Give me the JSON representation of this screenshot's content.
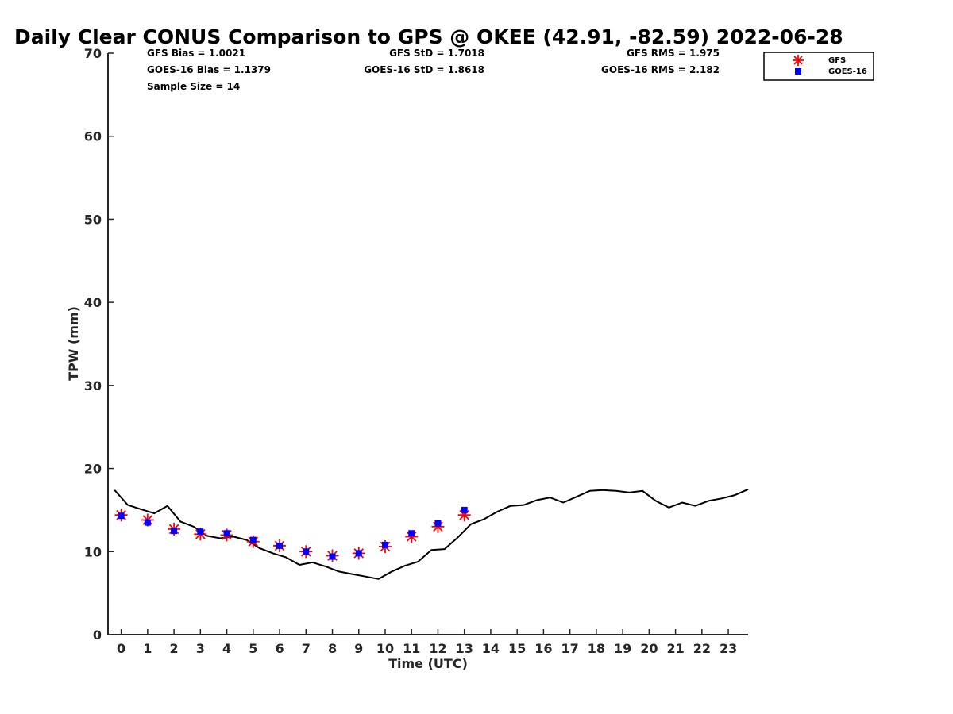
{
  "chart_data": {
    "type": "line",
    "title": "Daily Clear CONUS Comparison to GPS @ OKEE (42.91, -82.59) 2022-06-28",
    "xlabel": "Time (UTC)",
    "ylabel": "TPW (mm)",
    "xlim": [
      -0.5,
      23.75
    ],
    "ylim": [
      0,
      70
    ],
    "xticks": [
      "0",
      "1",
      "2",
      "3",
      "4",
      "5",
      "6",
      "7",
      "8",
      "9",
      "10",
      "11",
      "12",
      "13",
      "14",
      "15",
      "16",
      "17",
      "18",
      "19",
      "20",
      "21",
      "22",
      "23"
    ],
    "yticks": [
      "0",
      "10",
      "20",
      "30",
      "40",
      "50",
      "60",
      "70"
    ],
    "grid": false,
    "legend_position": "top-right",
    "stats": {
      "gfs_bias": "GFS Bias = 1.0021",
      "goes_bias": "GOES-16 Bias = 1.1379",
      "sample_size": "Sample Size = 14",
      "gfs_std": "GFS StD = 1.7018",
      "goes_std": "GOES-16 StD = 1.8618",
      "gfs_rms": "GFS RMS = 1.975",
      "goes_rms": "GOES-16 RMS = 2.182"
    },
    "series": [
      {
        "name": "GPS",
        "kind": "line",
        "color": "#000000",
        "x": [
          -0.25,
          0.25,
          0.75,
          1.25,
          1.75,
          2.25,
          2.75,
          3.25,
          3.75,
          4.25,
          4.75,
          5.25,
          5.75,
          6.25,
          6.75,
          7.25,
          7.75,
          8.25,
          8.75,
          9.25,
          9.75,
          10.25,
          10.75,
          11.25,
          11.75,
          12.25,
          12.75,
          13.25,
          13.75,
          14.25,
          14.75,
          15.25,
          15.75,
          16.25,
          16.75,
          17.25,
          17.75,
          18.25,
          18.75,
          19.25,
          19.75,
          20.25,
          20.75,
          21.25,
          21.75,
          22.25,
          22.75,
          23.25,
          23.75
        ],
        "y": [
          17.4,
          15.6,
          15.1,
          14.6,
          15.5,
          13.6,
          13.0,
          11.9,
          11.6,
          11.8,
          11.4,
          10.4,
          9.8,
          9.3,
          8.4,
          8.7,
          8.2,
          7.6,
          7.3,
          7.0,
          6.7,
          7.6,
          8.3,
          8.8,
          10.2,
          10.3,
          11.7,
          13.3,
          13.9,
          14.8,
          15.5,
          15.6,
          16.2,
          16.5,
          15.9,
          16.6,
          17.3,
          17.4,
          17.3,
          17.1,
          17.3,
          16.1,
          15.3,
          15.9,
          15.5,
          16.1,
          16.4,
          16.8,
          17.5
        ]
      },
      {
        "name": "GFS",
        "kind": "marker",
        "marker": "asterisk",
        "color": "#ff0000",
        "x": [
          0,
          1,
          2,
          3,
          4,
          5,
          6,
          7,
          8,
          9,
          10,
          11,
          12,
          13
        ],
        "y": [
          14.4,
          13.8,
          12.7,
          12.1,
          12.0,
          11.2,
          10.7,
          10.0,
          9.5,
          9.8,
          10.6,
          11.8,
          13.0,
          14.4
        ]
      },
      {
        "name": "GOES-16",
        "kind": "marker",
        "marker": "square",
        "color": "#0000ff",
        "x": [
          0,
          1,
          2,
          3,
          4,
          5,
          6,
          7,
          8,
          9,
          10,
          11,
          12,
          13
        ],
        "y": [
          14.3,
          13.5,
          12.5,
          12.4,
          12.2,
          11.4,
          10.7,
          10.0,
          9.4,
          9.8,
          10.8,
          12.2,
          13.4,
          15.0
        ]
      }
    ]
  }
}
